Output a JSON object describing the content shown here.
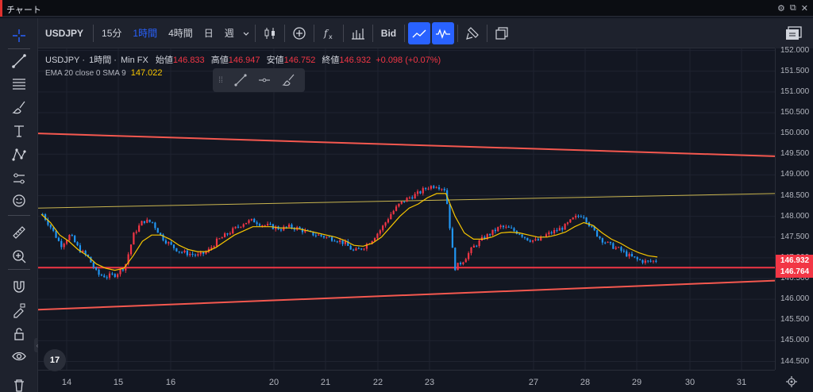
{
  "window": {
    "title": "チャート",
    "accent_color": "#e0312e"
  },
  "toolbar": {
    "symbol": "USDJPY",
    "intervals": [
      "15分",
      "1時間",
      "4時間",
      "日",
      "週"
    ],
    "active_interval": "1時間",
    "price_type": "Bid",
    "icons": [
      "candles-icon",
      "add-indicator-icon",
      "fx-indicators-icon",
      "templates-icon",
      "bid-toggle",
      "trend-line-icon",
      "wave-icon",
      "brush-icon",
      "layout-icon"
    ]
  },
  "left_tools": [
    "crosshair-icon",
    "trend-line-icon",
    "fib-icon",
    "brush-icon",
    "text-icon",
    "pattern-icon",
    "prediction-icon",
    "emoji-icon",
    "ruler-icon",
    "zoom-icon",
    "magnet-icon",
    "lock-drawing-icon",
    "lock-icon",
    "eye-icon",
    "trash-icon"
  ],
  "legend": {
    "symbol": "USDJPY",
    "interval": "1時間",
    "source": "Min FX",
    "open_label": "始値",
    "open": "146.833",
    "high_label": "高値",
    "high": "146.947",
    "low_label": "安値",
    "low": "146.752",
    "close_label": "終値",
    "close": "146.932",
    "change": "+0.098 (+0.07%)",
    "indicator": "EMA 20 close 0 SMA 9",
    "indicator_value": "147.022"
  },
  "price_axis": {
    "ticks": [
      "152.000",
      "151.500",
      "151.000",
      "150.500",
      "150.000",
      "149.500",
      "149.000",
      "148.500",
      "148.000",
      "147.500",
      "147.000",
      "146.500",
      "146.000",
      "145.500",
      "145.000",
      "144.500"
    ],
    "last_price": "146.932",
    "line_price": "146.764",
    "tag_color": "#f23645"
  },
  "time_axis": {
    "labels": [
      "14",
      "15",
      "16",
      "20",
      "21",
      "22",
      "23",
      "27",
      "28",
      "29",
      "30",
      "31"
    ]
  },
  "chart_data": {
    "type": "candlestick",
    "symbol": "USDJPY",
    "interval": "1時間",
    "y_range": [
      144.3,
      152.05
    ],
    "horizontal_line": 146.764,
    "ema_line_color": "#f7c600",
    "up_color": "#f23645",
    "down_color": "#2196f3",
    "trend_lines": [
      {
        "color": "#f5584f",
        "from": 150.0,
        "to": 149.45
      },
      {
        "color": "#f5584f",
        "from": 145.75,
        "to": 146.45
      },
      {
        "color": "#c9b54f",
        "from": 148.2,
        "to": 148.55
      }
    ],
    "price_path": [
      148.05,
      147.7,
      147.3,
      147.55,
      147.2,
      147.0,
      146.6,
      146.55,
      146.6,
      146.8,
      147.6,
      147.9,
      147.85,
      147.5,
      147.3,
      147.15,
      147.1,
      147.05,
      147.15,
      147.4,
      147.55,
      147.7,
      147.85,
      147.9,
      147.8,
      147.75,
      147.7,
      147.75,
      147.7,
      147.6,
      147.55,
      147.5,
      147.45,
      147.35,
      147.15,
      147.25,
      147.45,
      147.7,
      148.05,
      148.3,
      148.45,
      148.55,
      148.7,
      148.75,
      148.65,
      146.75,
      146.95,
      147.25,
      147.45,
      147.6,
      147.75,
      147.7,
      147.6,
      147.45,
      147.4,
      147.55,
      147.65,
      147.75,
      147.95,
      148.05,
      147.7,
      147.45,
      147.3,
      147.2,
      147.05,
      146.95,
      146.9,
      146.93
    ],
    "ema_path": [
      148.05,
      147.85,
      147.55,
      147.4,
      147.2,
      147.05,
      146.85,
      146.75,
      146.7,
      146.75,
      147.05,
      147.4,
      147.55,
      147.55,
      147.45,
      147.3,
      147.2,
      147.15,
      147.15,
      147.25,
      147.4,
      147.55,
      147.65,
      147.75,
      147.75,
      147.75,
      147.72,
      147.72,
      147.7,
      147.65,
      147.6,
      147.55,
      147.5,
      147.42,
      147.3,
      147.28,
      147.35,
      147.5,
      147.75,
      148.0,
      148.2,
      148.3,
      148.45,
      148.55,
      148.55,
      148.0,
      147.6,
      147.45,
      147.45,
      147.5,
      147.6,
      147.62,
      147.6,
      147.55,
      147.5,
      147.5,
      147.55,
      147.62,
      147.75,
      147.85,
      147.78,
      147.6,
      147.45,
      147.35,
      147.22,
      147.12,
      147.05,
      147.02
    ]
  }
}
